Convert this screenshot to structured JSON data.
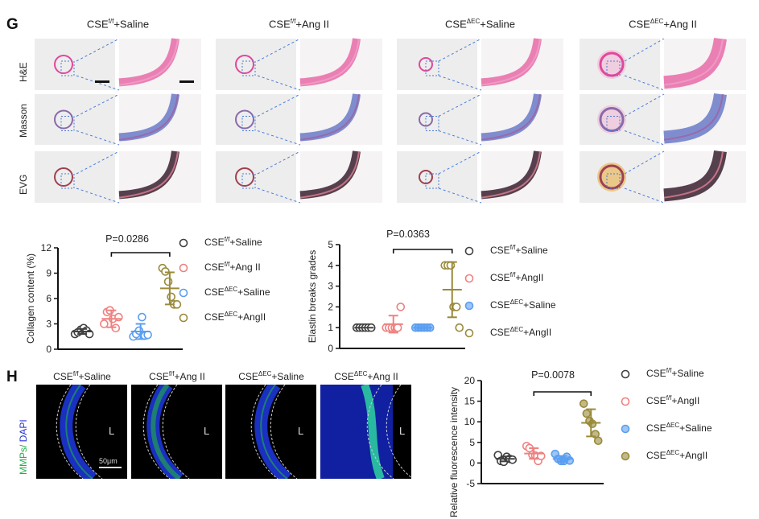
{
  "panel_g": {
    "letter": "G",
    "columns": [
      {
        "base": "CSE",
        "sup": "f/f",
        "rest": "+Saline"
      },
      {
        "base": "CSE",
        "sup": "f/f",
        "rest": "+Ang II"
      },
      {
        "base": "CSE",
        "sup": "ΔEC",
        "rest": "+Saline"
      },
      {
        "base": "CSE",
        "sup": "ΔEC",
        "rest": "+Ang II"
      }
    ],
    "rows": [
      "H&E",
      "Masson",
      "EVG"
    ]
  },
  "panel_h": {
    "letter": "H",
    "columns": [
      {
        "base": "CSE",
        "sup": "f/f",
        "rest": "+Saline"
      },
      {
        "base": "CSE",
        "sup": "f/f",
        "rest": "+Ang II"
      },
      {
        "base": "CSE",
        "sup": "ΔEC",
        "rest": "+Saline"
      },
      {
        "base": "CSE",
        "sup": "ΔEC",
        "rest": "+Ang II"
      }
    ],
    "ylabel_green": "MMPs/",
    "ylabel_blue": " DAPI",
    "lumen_label": "L",
    "scale_bar": "50μm"
  },
  "colors": {
    "black": "#404040",
    "red": "#f08080",
    "blue": "#5b9ef0",
    "gold": "#9a8a3a",
    "green": "#22c55e",
    "dapi": "#2233dd"
  },
  "chart_data": [
    {
      "type": "scatter",
      "ylabel": "Collagen content (%)",
      "ylim": [
        0,
        12
      ],
      "yticks": [
        0,
        3,
        6,
        9,
        12
      ],
      "pvalue": "P=0.0286",
      "bracket": [
        1,
        3
      ],
      "legend": [
        {
          "base": "CSE",
          "sup": "f/f",
          "rest": "+Saline",
          "color": "black",
          "fill": false
        },
        {
          "base": "CSE",
          "sup": "f/f",
          "rest": "+Ang II",
          "color": "red",
          "fill": false
        },
        {
          "base": "CSE",
          "sup": "ΔEC",
          "rest": "+Saline",
          "color": "blue",
          "fill": false
        },
        {
          "base": "CSE",
          "sup": "ΔEC",
          "rest": "+AngII",
          "color": "gold",
          "fill": false
        }
      ],
      "series": [
        {
          "values": [
            1.8,
            2.0,
            2.3,
            2.5,
            2.2,
            1.8
          ],
          "mean": 2.1,
          "sd": 0.3
        },
        {
          "values": [
            3.0,
            4.4,
            4.6,
            3.6,
            2.5,
            3.8
          ],
          "mean": 3.6,
          "sd": 1.0
        },
        {
          "values": [
            1.5,
            1.8,
            2.2,
            3.8,
            1.6,
            1.7
          ],
          "mean": 2.1,
          "sd": 0.9
        },
        {
          "values": [
            9.6,
            9.2,
            8.0,
            6.2,
            5.3,
            5.3
          ],
          "mean": 7.2,
          "sd": 1.9
        }
      ]
    },
    {
      "type": "scatter",
      "ylabel": "Elastin breaks grades",
      "ylim": [
        0,
        5
      ],
      "yticks": [
        0,
        1,
        2,
        3,
        4,
        5
      ],
      "pvalue": "P=0.0363",
      "bracket": [
        1,
        3
      ],
      "legend": [
        {
          "base": "CSE",
          "sup": "f/f",
          "rest": "+Saline",
          "color": "black",
          "fill": false
        },
        {
          "base": "CSE",
          "sup": "f/f",
          "rest": "+AngII",
          "color": "red",
          "fill": false
        },
        {
          "base": "CSE",
          "sup": "ΔEC",
          "rest": "+Saline",
          "color": "blue",
          "fill": true
        },
        {
          "base": "CSE",
          "sup": "ΔEC",
          "rest": "+AngII",
          "color": "gold",
          "fill": false
        }
      ],
      "series": [
        {
          "values": [
            1,
            1,
            1,
            1,
            1,
            1
          ],
          "mean": 1,
          "sd": 0
        },
        {
          "values": [
            1,
            1,
            1,
            1,
            1,
            2
          ],
          "mean": 1.17,
          "sd": 0.41
        },
        {
          "values": [
            1,
            1,
            1,
            1,
            1,
            1
          ],
          "mean": 1,
          "sd": 0
        },
        {
          "values": [
            4,
            4,
            4,
            2,
            2,
            1
          ],
          "mean": 2.83,
          "sd": 1.33
        }
      ]
    },
    {
      "type": "scatter",
      "ylabel": "Relative fluorescence intensity",
      "ylim": [
        -5,
        20
      ],
      "yticks": [
        -5,
        0,
        5,
        10,
        15,
        20
      ],
      "pvalue": "P=0.0078",
      "bracket": [
        1,
        3
      ],
      "legend": [
        {
          "base": "CSE",
          "sup": "f/f",
          "rest": "+Saline",
          "color": "black",
          "fill": false
        },
        {
          "base": "CSE",
          "sup": "f/f",
          "rest": "+AngII",
          "color": "red",
          "fill": false
        },
        {
          "base": "CSE",
          "sup": "ΔEC",
          "rest": "+Saline",
          "color": "blue",
          "fill": true
        },
        {
          "base": "CSE",
          "sup": "ΔEC",
          "rest": "+AngII",
          "color": "gold",
          "fill": true
        }
      ],
      "series": [
        {
          "values": [
            1.9,
            0.5,
            0.3,
            1.5,
            1.0,
            0.8
          ],
          "mean": 1.0,
          "sd": 0.6
        },
        {
          "values": [
            4.1,
            3.6,
            2.0,
            1.8,
            0.5,
            1.7
          ],
          "mean": 2.3,
          "sd": 1.3
        },
        {
          "values": [
            2.2,
            1.0,
            0.5,
            0.5,
            1.5,
            0.6
          ],
          "mean": 1.0,
          "sd": 0.7
        },
        {
          "values": [
            14.4,
            12.0,
            10.2,
            9.5,
            7.0,
            5.4
          ],
          "mean": 9.75,
          "sd": 3.3
        }
      ]
    }
  ]
}
